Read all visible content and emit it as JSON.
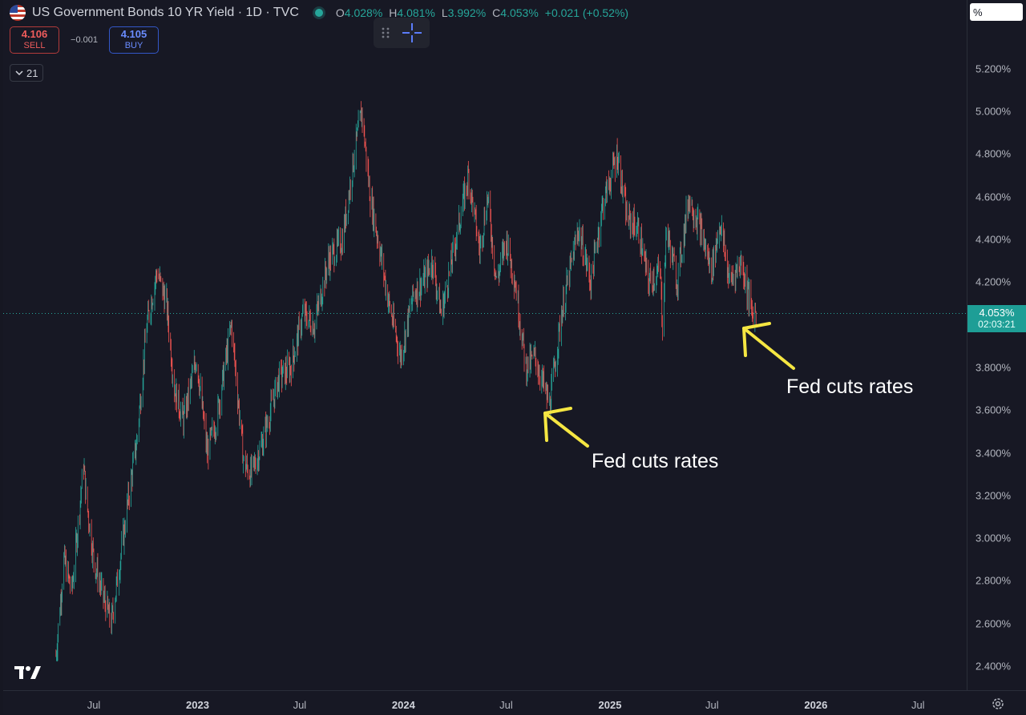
{
  "header": {
    "title": "US Government Bonds 10 YR Yield · 1D · TVC",
    "ohlc": {
      "o_label": "O",
      "o": "4.028%",
      "h_label": "H",
      "h": "4.081%",
      "l_label": "L",
      "l": "3.992%",
      "c_label": "C",
      "c": "4.053%",
      "change": "+0.021 (+0.52%)"
    }
  },
  "trade": {
    "sell_price": "4.106",
    "sell_label": "SELL",
    "spread": "−0.001",
    "buy_price": "4.105",
    "buy_label": "BUY"
  },
  "indicator_toggle": {
    "icon": "chevron-down-icon",
    "count": "21"
  },
  "price_axis": {
    "unit": "%",
    "last_price": "4.053%",
    "countdown": "02:03:21",
    "ticks": [
      "5.200%",
      "5.000%",
      "4.800%",
      "4.600%",
      "4.400%",
      "4.200%",
      "3.800%",
      "3.600%",
      "3.400%",
      "3.200%",
      "3.000%",
      "2.800%",
      "2.600%",
      "2.400%"
    ]
  },
  "time_axis": {
    "ticks": [
      {
        "label": "Jul",
        "major": false
      },
      {
        "label": "2023",
        "major": true
      },
      {
        "label": "Jul",
        "major": false
      },
      {
        "label": "2024",
        "major": true
      },
      {
        "label": "Jul",
        "major": false
      },
      {
        "label": "2025",
        "major": true
      },
      {
        "label": "Jul",
        "major": false
      },
      {
        "label": "2026",
        "major": true
      },
      {
        "label": "Jul",
        "major": false
      }
    ]
  },
  "annotations": [
    {
      "text": "Fed cuts rates"
    },
    {
      "text": "Fed cuts rates"
    }
  ],
  "colors": {
    "background": "#171824",
    "up": "#26a69a",
    "down": "#ef5350",
    "annotation_arrow": "#f5e642",
    "last_price_line": "#26a69a"
  },
  "chart_data": {
    "type": "line",
    "candles": true,
    "x": [
      "2022-04-25",
      "2022-05-09",
      "2022-05-23",
      "2022-06-13",
      "2022-06-17",
      "2022-07-01",
      "2022-07-15",
      "2022-08-01",
      "2022-08-17",
      "2022-09-01",
      "2022-09-15",
      "2022-10-03",
      "2022-10-21",
      "2022-11-07",
      "2022-11-21",
      "2022-12-07",
      "2022-12-30",
      "2023-01-18",
      "2023-02-03",
      "2023-03-02",
      "2023-03-24",
      "2023-04-06",
      "2023-04-26",
      "2023-05-25",
      "2023-06-15",
      "2023-07-07",
      "2023-07-27",
      "2023-08-21",
      "2023-09-15",
      "2023-10-06",
      "2023-10-19",
      "2023-11-03",
      "2023-11-17",
      "2023-12-06",
      "2023-12-27",
      "2024-01-19",
      "2024-02-05",
      "2024-02-21",
      "2024-03-08",
      "2024-04-03",
      "2024-04-25",
      "2024-05-15",
      "2024-05-29",
      "2024-06-14",
      "2024-07-01",
      "2024-07-17",
      "2024-08-05",
      "2024-08-21",
      "2024-09-16",
      "2024-10-07",
      "2024-11-06",
      "2024-11-28",
      "2024-12-18",
      "2025-01-14",
      "2025-01-31",
      "2025-02-20",
      "2025-03-10",
      "2025-03-31",
      "2025-04-04",
      "2025-04-11",
      "2025-04-30",
      "2025-05-21",
      "2025-06-10",
      "2025-06-30",
      "2025-07-15",
      "2025-08-01",
      "2025-08-22",
      "2025-09-10",
      "2025-09-17"
    ],
    "values": [
      2.45,
      2.9,
      2.75,
      3.35,
      3.2,
      2.9,
      2.75,
      2.6,
      2.9,
      3.2,
      3.45,
      4.0,
      4.25,
      4.1,
      3.7,
      3.55,
      3.85,
      3.4,
      3.55,
      4.0,
      3.35,
      3.3,
      3.45,
      3.75,
      3.8,
      4.05,
      4.0,
      4.3,
      4.4,
      4.8,
      5.0,
      4.6,
      4.4,
      4.1,
      3.85,
      4.15,
      4.2,
      4.3,
      4.05,
      4.4,
      4.7,
      4.35,
      4.6,
      4.2,
      4.4,
      4.2,
      3.8,
      3.85,
      3.62,
      4.05,
      4.45,
      4.2,
      4.55,
      4.8,
      4.5,
      4.45,
      4.2,
      4.25,
      4.0,
      4.45,
      4.2,
      4.6,
      4.45,
      4.25,
      4.48,
      4.2,
      4.3,
      4.05,
      4.053
    ],
    "ylim": [
      2.3,
      5.3
    ],
    "last_price": 4.053
  }
}
